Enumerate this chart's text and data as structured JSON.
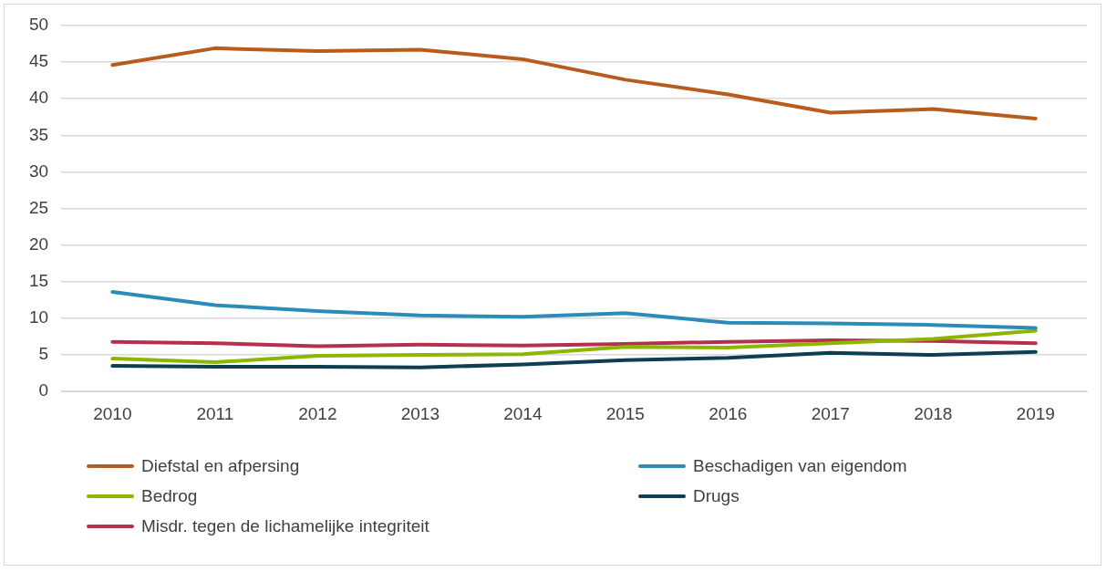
{
  "chart_data": {
    "type": "line",
    "categories": [
      "2010",
      "2011",
      "2012",
      "2013",
      "2014",
      "2015",
      "2016",
      "2017",
      "2018",
      "2019"
    ],
    "series": [
      {
        "name": "Diefstal en afpersing",
        "color": "#b85c1e",
        "values": [
          44.6,
          46.9,
          46.5,
          46.7,
          45.4,
          42.6,
          40.6,
          38.1,
          38.6,
          37.3
        ]
      },
      {
        "name": "Beschadigen van eigendom",
        "color": "#2b8cb8",
        "values": [
          13.6,
          11.8,
          11.0,
          10.4,
          10.2,
          10.7,
          9.4,
          9.3,
          9.1,
          8.7
        ]
      },
      {
        "name": "Bedrog",
        "color": "#8db600",
        "values": [
          4.5,
          4.0,
          4.9,
          5.0,
          5.1,
          6.1,
          6.0,
          6.6,
          7.2,
          8.3
        ]
      },
      {
        "name": "Drugs",
        "color": "#0f3d52",
        "values": [
          3.5,
          3.4,
          3.4,
          3.3,
          3.7,
          4.3,
          4.6,
          5.3,
          5.0,
          5.4
        ]
      },
      {
        "name": "Misdr. tegen de lichamelijke integriteit",
        "color": "#b5304f",
        "values": [
          6.8,
          6.6,
          6.2,
          6.4,
          6.3,
          6.5,
          6.8,
          7.0,
          6.9,
          6.6
        ]
      }
    ],
    "ylim": [
      0,
      50
    ],
    "yticks": [
      0,
      5,
      10,
      15,
      20,
      25,
      30,
      35,
      40,
      45,
      50
    ],
    "grid": "y",
    "legend": "bottom",
    "marker": "none",
    "line_style": "solid"
  }
}
